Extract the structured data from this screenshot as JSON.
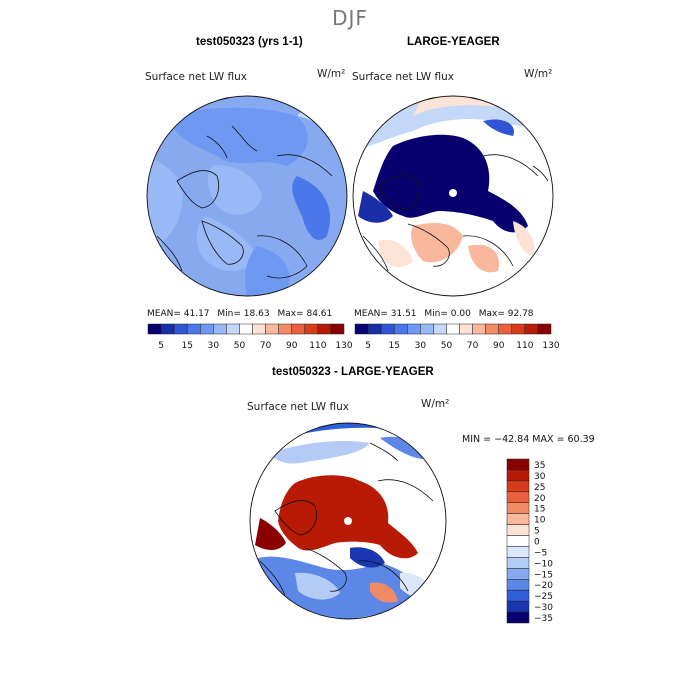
{
  "title": "DJF",
  "panels": [
    {
      "title": "test050323 (yrs 1-1)",
      "var_label": "Surface net LW flux",
      "units": "W/m²",
      "stats": {
        "mean_label": "MEAN=",
        "mean": "41.17",
        "min_label": "Min=",
        "min": "18.63",
        "max_label": "Max=",
        "max": "84.61"
      }
    },
    {
      "title": "LARGE-YEAGER",
      "var_label": "Surface net LW flux",
      "units": "W/m²",
      "stats": {
        "mean_label": "MEAN=",
        "mean": "31.51",
        "min_label": "Min=",
        "min": "0.00",
        "max_label": "Max=",
        "max": "92.78"
      }
    },
    {
      "title": "test050323 - LARGE-YEAGER",
      "var_label": "Surface net LW flux",
      "units": "W/m²",
      "minmax": "MIN = −42.84  MAX =  60.39"
    }
  ],
  "chart_data": [
    {
      "type": "heatmap",
      "title": "test050323 (yrs 1-1)",
      "subtitle": "Surface net LW flux",
      "units": "W/m2",
      "projection": "north polar stereographic",
      "levels": [
        5,
        10,
        15,
        20,
        30,
        40,
        50,
        60,
        70,
        80,
        90,
        100,
        110,
        120,
        130
      ],
      "colorbar_tick_labels": [
        "5",
        "15",
        "30",
        "50",
        "70",
        "90",
        "110",
        "130"
      ],
      "colors": [
        "#08006e",
        "#1a2ea8",
        "#2f55d6",
        "#4a78ea",
        "#6f98f2",
        "#98b8f6",
        "#c4d8fa",
        "#ffffff",
        "#fde3d6",
        "#f9b79c",
        "#f28a66",
        "#e8603e",
        "#d63b1c",
        "#b81a06",
        "#8a0000"
      ],
      "mean": 41.17,
      "min": 18.63,
      "max": 84.61
    },
    {
      "type": "heatmap",
      "title": "LARGE-YEAGER",
      "subtitle": "Surface net LW flux",
      "units": "W/m2",
      "projection": "north polar stereographic",
      "levels": [
        5,
        10,
        15,
        20,
        30,
        40,
        50,
        60,
        70,
        80,
        90,
        100,
        110,
        120,
        130
      ],
      "colorbar_tick_labels": [
        "5",
        "15",
        "30",
        "50",
        "70",
        "90",
        "110",
        "130"
      ],
      "colors": [
        "#08006e",
        "#1a2ea8",
        "#2f55d6",
        "#4a78ea",
        "#6f98f2",
        "#98b8f6",
        "#c4d8fa",
        "#ffffff",
        "#fde3d6",
        "#f9b79c",
        "#f28a66",
        "#e8603e",
        "#d63b1c",
        "#b81a06",
        "#8a0000"
      ],
      "mean": 31.51,
      "min": 0.0,
      "max": 92.78
    },
    {
      "type": "heatmap",
      "title": "test050323 - LARGE-YEAGER",
      "subtitle": "Surface net LW flux",
      "units": "W/m2",
      "projection": "north polar stereographic",
      "levels": [
        35,
        30,
        25,
        20,
        15,
        10,
        5,
        0,
        -5,
        -10,
        -15,
        -20,
        -25,
        -30,
        -35
      ],
      "colorbar_tick_labels": [
        "35",
        "30",
        "25",
        "20",
        "15",
        "10",
        "5",
        "0",
        "−5",
        "−10",
        "−15",
        "−20",
        "−25",
        "−30",
        "−35"
      ],
      "colors": [
        "#8a0000",
        "#b81a06",
        "#d63b1c",
        "#e8603e",
        "#f28a66",
        "#f9b79c",
        "#fde3d6",
        "#ffffff",
        "#dbe7fb",
        "#b3cbf5",
        "#86a9ef",
        "#5c87e6",
        "#2f5ed8",
        "#1a36b0",
        "#08006e"
      ],
      "min": -42.84,
      "max": 60.39
    }
  ]
}
